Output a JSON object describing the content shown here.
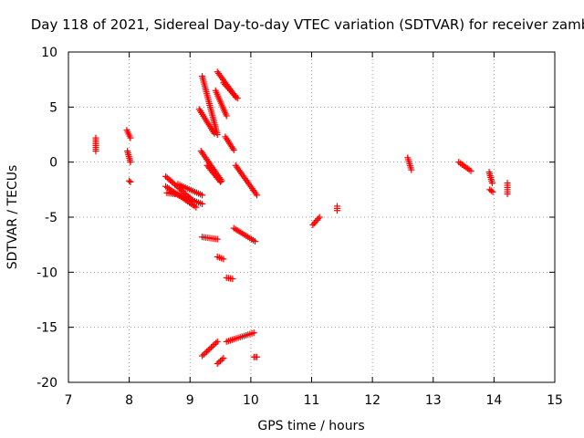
{
  "chart_data": {
    "type": "scatter",
    "title": "Day 118 of 2021, Sidereal Day-to-day VTEC variation (SDTVAR) for receiver zamb",
    "xlabel": "GPS time / hours",
    "ylabel": "SDTVAR / TECUs",
    "xlim": [
      7,
      15
    ],
    "ylim": [
      -20,
      10
    ],
    "xticks": [
      7,
      8,
      9,
      10,
      11,
      12,
      13,
      14,
      15
    ],
    "yticks": [
      -20,
      -15,
      -10,
      -5,
      0,
      5,
      10
    ],
    "grid": true,
    "marker": "+",
    "color": "#ff0000",
    "series": [
      {
        "name": "SDTVAR",
        "segments": [
          {
            "x": [
              7.45,
              7.45
            ],
            "y": [
              2.2,
              1.0
            ]
          },
          {
            "x": [
              7.96,
              8.02
            ],
            "y": [
              2.9,
              2.2
            ]
          },
          {
            "x": [
              7.97,
              8.02
            ],
            "y": [
              1.0,
              0.0
            ]
          },
          {
            "x": [
              8.0,
              8.02
            ],
            "y": [
              -1.7,
              -1.8
            ]
          },
          {
            "x": [
              8.6,
              9.05
            ],
            "y": [
              -1.3,
              -3.5
            ]
          },
          {
            "x": [
              8.6,
              9.1
            ],
            "y": [
              -2.2,
              -4.1
            ]
          },
          {
            "x": [
              8.68,
              9.2
            ],
            "y": [
              -2.7,
              -3.8
            ]
          },
          {
            "x": [
              8.8,
              9.2
            ],
            "y": [
              -2.0,
              -3.0
            ]
          },
          {
            "x": [
              8.62,
              8.75
            ],
            "y": [
              -2.8,
              -2.9
            ]
          },
          {
            "x": [
              9.2,
              9.45
            ],
            "y": [
              7.8,
              2.5
            ]
          },
          {
            "x": [
              9.15,
              9.4
            ],
            "y": [
              4.8,
              2.6
            ]
          },
          {
            "x": [
              9.45,
              9.75
            ],
            "y": [
              8.2,
              5.9
            ]
          },
          {
            "x": [
              9.42,
              9.6
            ],
            "y": [
              6.5,
              4.2
            ]
          },
          {
            "x": [
              9.55,
              9.78
            ],
            "y": [
              7.2,
              5.8
            ]
          },
          {
            "x": [
              9.58,
              9.72
            ],
            "y": [
              2.3,
              1.1
            ]
          },
          {
            "x": [
              9.18,
              9.52
            ],
            "y": [
              1.0,
              -1.7
            ]
          },
          {
            "x": [
              9.28,
              9.5
            ],
            "y": [
              -0.3,
              -1.8
            ]
          },
          {
            "x": [
              9.75,
              10.1
            ],
            "y": [
              -0.3,
              -3.0
            ]
          },
          {
            "x": [
              9.2,
              9.45
            ],
            "y": [
              -6.8,
              -7.0
            ]
          },
          {
            "x": [
              9.72,
              10.07
            ],
            "y": [
              -6.0,
              -7.2
            ]
          },
          {
            "x": [
              9.45,
              9.55
            ],
            "y": [
              -8.6,
              -8.8
            ]
          },
          {
            "x": [
              9.6,
              9.7
            ],
            "y": [
              -10.5,
              -10.6
            ]
          },
          {
            "x": [
              9.2,
              9.45
            ],
            "y": [
              -17.6,
              -16.3
            ]
          },
          {
            "x": [
              9.45,
              9.55
            ],
            "y": [
              -18.3,
              -17.8
            ]
          },
          {
            "x": [
              9.6,
              10.05
            ],
            "y": [
              -16.3,
              -15.5
            ]
          },
          {
            "x": [
              10.05,
              10.1
            ],
            "y": [
              -17.7,
              -17.7
            ]
          },
          {
            "x": [
              11.02,
              11.13
            ],
            "y": [
              -5.7,
              -5.0
            ]
          },
          {
            "x": [
              11.42,
              11.42
            ],
            "y": [
              -4.0,
              -4.4
            ]
          },
          {
            "x": [
              12.58,
              12.64
            ],
            "y": [
              0.4,
              -0.7
            ]
          },
          {
            "x": [
              13.42,
              13.62
            ],
            "y": [
              0.0,
              -0.8
            ]
          },
          {
            "x": [
              13.92,
              13.97
            ],
            "y": [
              -0.9,
              -1.9
            ]
          },
          {
            "x": [
              13.93,
              13.98
            ],
            "y": [
              -2.5,
              -2.7
            ]
          },
          {
            "x": [
              14.22,
              14.22
            ],
            "y": [
              -1.9,
              -2.9
            ]
          }
        ]
      }
    ]
  }
}
